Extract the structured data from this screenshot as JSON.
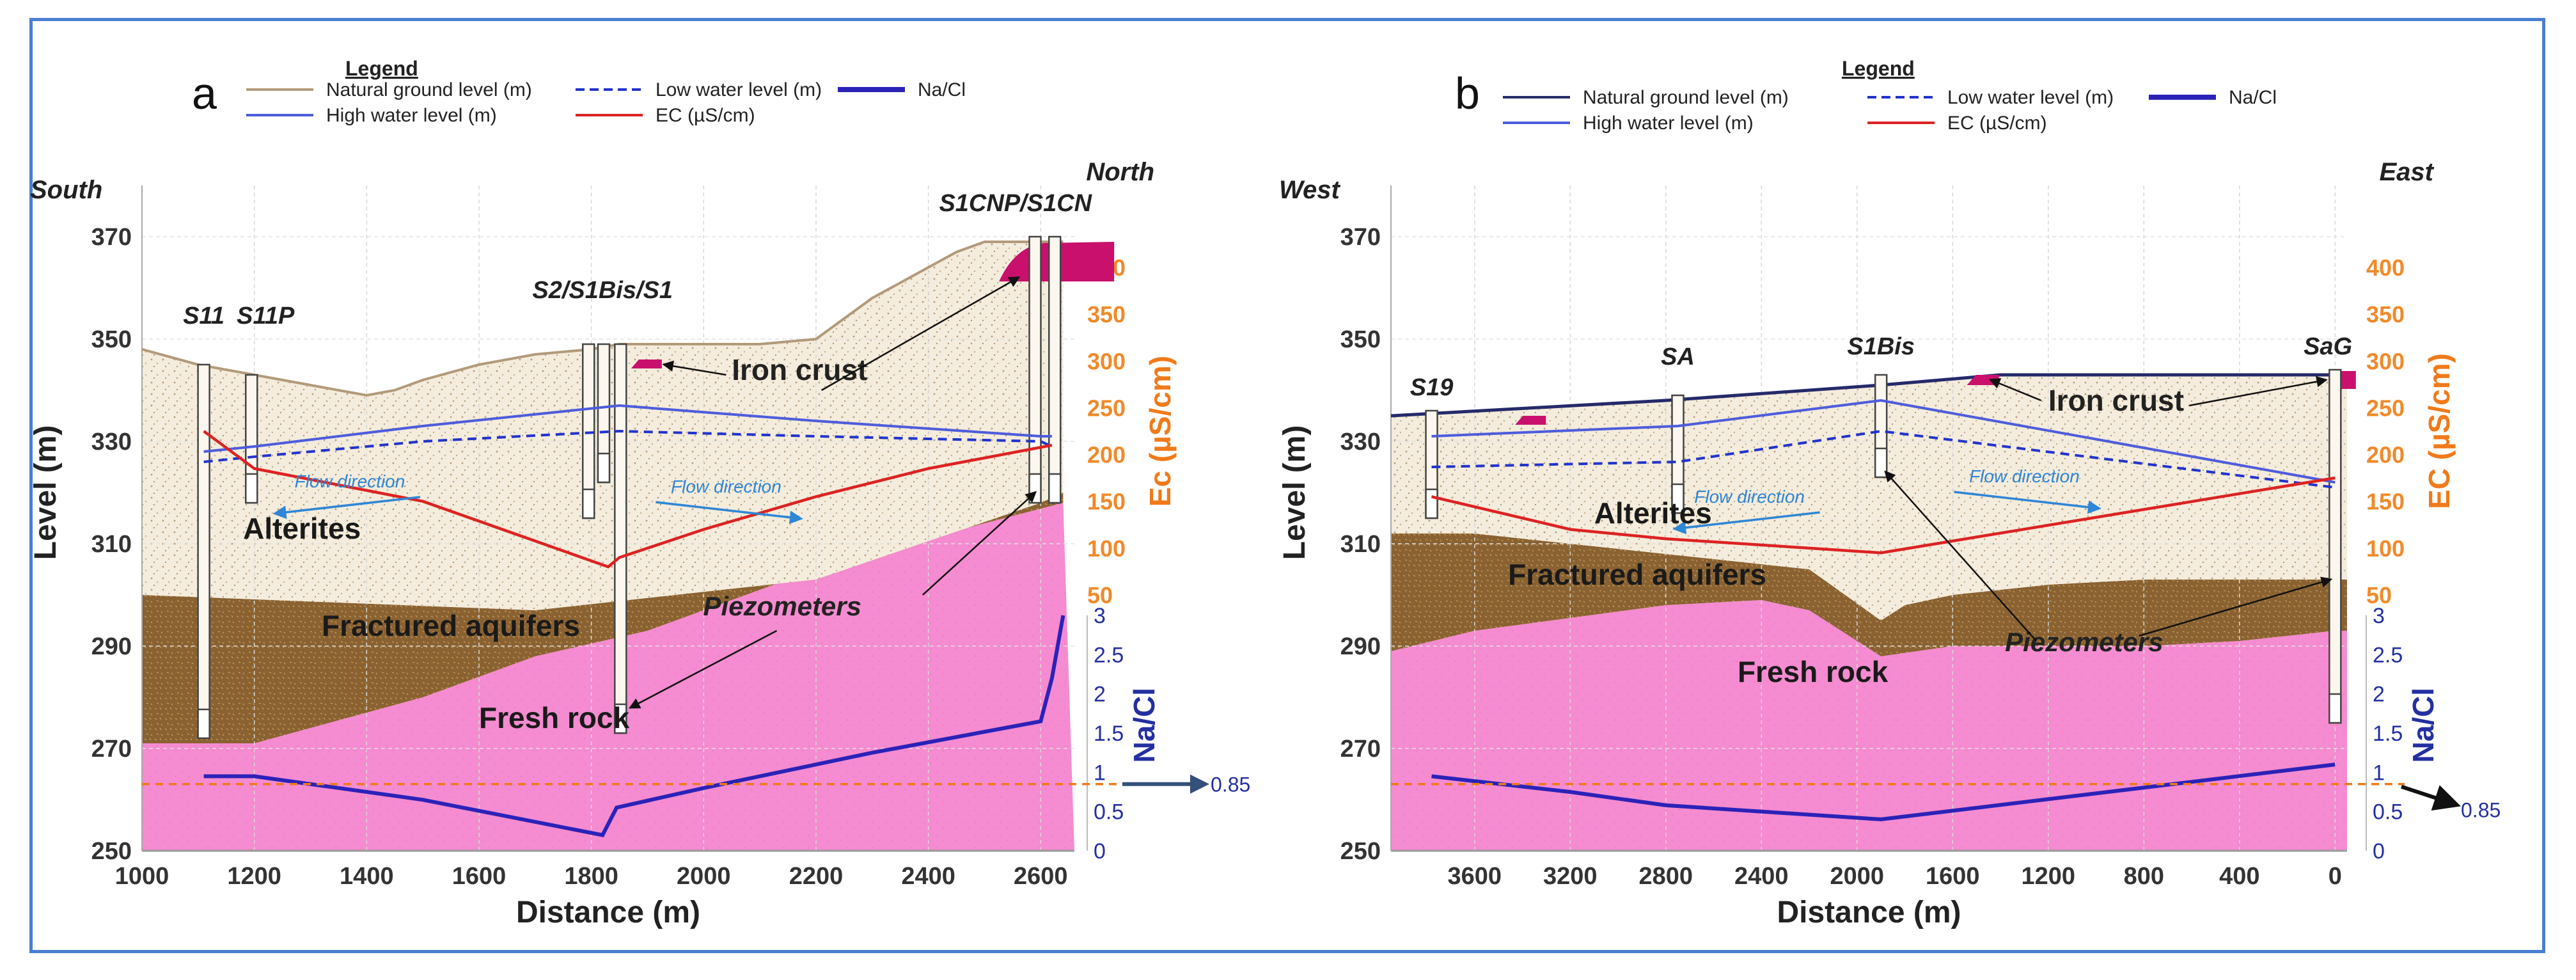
{
  "chart_data": [
    {
      "type": "cross-section",
      "panel_label": "a",
      "legend_title": "Legend",
      "legend": [
        {
          "key": "ground",
          "label": "Natural ground level (m)",
          "color": "#b29a7a",
          "style": "solid"
        },
        {
          "key": "low",
          "label": "Low water level (m)",
          "color": "#2233cc",
          "style": "dashed"
        },
        {
          "key": "nacl",
          "label": "Na/Cl",
          "color": "#2b22b8",
          "style": "solid"
        },
        {
          "key": "high",
          "label": "High water level (m)",
          "color": "#4d5cdc",
          "style": "solid"
        },
        {
          "key": "ec",
          "label": "EC (µS/cm)",
          "color": "#dd2222",
          "style": "solid"
        }
      ],
      "direction_left": "South",
      "direction_right": "North",
      "xlabel": "Distance (m)",
      "ylabel": "Level (m)",
      "ec_label": "Ec (µS/cm)",
      "nacl_label": "Na/Cl",
      "xlim": [
        1000,
        2660
      ],
      "ylim": [
        250,
        380
      ],
      "x_ticks": [
        1000,
        1200,
        1400,
        1600,
        1800,
        2000,
        2200,
        2400,
        2600
      ],
      "y_ticks": [
        250,
        270,
        290,
        310,
        330,
        350,
        370
      ],
      "ec_ticks": [
        50,
        100,
        150,
        200,
        250,
        300,
        350,
        400
      ],
      "nacl_ticks": [
        0,
        0.5,
        1,
        1.5,
        2,
        2.5,
        3
      ],
      "ground_level": {
        "x": [
          1000,
          1100,
          1200,
          1300,
          1400,
          1450,
          1500,
          1600,
          1700,
          1800,
          1850,
          1900,
          2000,
          2100,
          2200,
          2300,
          2400,
          2450,
          2500,
          2600,
          2640
        ],
        "y": [
          348,
          345,
          343,
          341,
          339,
          340,
          342,
          345,
          347,
          348,
          349,
          349,
          349,
          349,
          350,
          358,
          364,
          367,
          369,
          369,
          369
        ]
      },
      "high_water": {
        "x": [
          1110,
          1200,
          1500,
          1850,
          2200,
          2600,
          2620
        ],
        "y": [
          328,
          329,
          333,
          337,
          334,
          331,
          331
        ]
      },
      "low_water": {
        "x": [
          1110,
          1200,
          1500,
          1850,
          2200,
          2600,
          2620
        ],
        "y": [
          326,
          327,
          330,
          332,
          331,
          330,
          329
        ]
      },
      "ec": {
        "x": [
          1110,
          1200,
          1500,
          1830,
          1850,
          2000,
          2200,
          2400,
          2620
        ],
        "y": [
          225,
          185,
          150,
          80,
          90,
          120,
          155,
          185,
          210
        ]
      },
      "nacl": {
        "x": [
          1110,
          1200,
          1500,
          1820,
          1845,
          2000,
          2300,
          2600,
          2620,
          2640
        ],
        "y": [
          0.95,
          0.95,
          0.65,
          0.2,
          0.55,
          0.8,
          1.25,
          1.65,
          2.2,
          3.0
        ]
      },
      "nacl_threshold": 0.85,
      "nacl_threshold_label": "0.85",
      "layers": [
        {
          "name": "Alterites",
          "bottom_x": [
            1000,
            1700,
            2200,
            2600,
            2640
          ],
          "bottom_y": [
            300,
            297,
            303,
            318,
            320
          ]
        },
        {
          "name": "Fractured aquifers",
          "bottom_x": [
            1000,
            1200,
            1500,
            1700,
            1900,
            2200,
            2500,
            2640
          ],
          "bottom_y": [
            271,
            271,
            280,
            288,
            293,
            305,
            314,
            318
          ]
        },
        {
          "name": "Fresh rock"
        }
      ],
      "wells": [
        {
          "x": 1110,
          "top": 345,
          "bottom": 272
        },
        {
          "x": 1195,
          "top": 343,
          "bottom": 318
        },
        {
          "x": 1795,
          "top": 349,
          "bottom": 315
        },
        {
          "x": 1822,
          "top": 349,
          "bottom": 322
        },
        {
          "x": 1852,
          "top": 349,
          "bottom": 273
        },
        {
          "x": 2590,
          "top": 370,
          "bottom": 318
        },
        {
          "x": 2625,
          "top": 370,
          "bottom": 318
        }
      ],
      "well_labels": [
        {
          "x": 1110,
          "y": 353,
          "text": "S11"
        },
        {
          "x": 1220,
          "y": 353,
          "text": "S11P"
        },
        {
          "x": 1820,
          "y": 358,
          "text": "S2/S1Bis/S1"
        },
        {
          "x": 2555,
          "y": 375,
          "text": "S1CNP/S1CN"
        }
      ],
      "iron_crust": {
        "x": 2560,
        "y": 365,
        "label": "Iron crust",
        "label_x": 2050,
        "label_y": 342
      },
      "small_crust": {
        "x": 1905,
        "y": 345
      },
      "flow_labels": [
        {
          "x": 1370,
          "y": 321,
          "text": "Flow direction",
          "arrow_dir": "left"
        },
        {
          "x": 2040,
          "y": 320,
          "text": "Flow direction",
          "arrow_dir": "right"
        }
      ],
      "piezo_label": {
        "x": 2140,
        "y": 296,
        "text": "Piezometers"
      },
      "layer_labels": [
        {
          "x": 1180,
          "y": 311,
          "text": "Alterites"
        },
        {
          "x": 1320,
          "y": 292,
          "text": "Fractured aquifers"
        },
        {
          "x": 1600,
          "y": 274,
          "text": "Fresh rock"
        }
      ]
    },
    {
      "type": "cross-section",
      "panel_label": "b",
      "legend_title": "Legend",
      "legend": [
        {
          "key": "ground",
          "label": "Natural ground level (m)",
          "color": "#252a6a",
          "style": "solid"
        },
        {
          "key": "low",
          "label": "Low water level (m)",
          "color": "#2233cc",
          "style": "dashed"
        },
        {
          "key": "nacl",
          "label": "Na/Cl",
          "color": "#2b22b8",
          "style": "solid"
        },
        {
          "key": "high",
          "label": "High water level (m)",
          "color": "#4d5cdc",
          "style": "solid"
        },
        {
          "key": "ec",
          "label": "EC (µS/cm)",
          "color": "#dd2222",
          "style": "solid"
        }
      ],
      "direction_left": "West",
      "direction_right": "East",
      "xlabel": "Distance (m)",
      "ylabel": "Level (m)",
      "ec_label": "EC (µS/cm)",
      "nacl_label": "Na/Cl",
      "xlim": [
        3950,
        -50
      ],
      "ylim": [
        250,
        380
      ],
      "x_ticks": [
        3600,
        3200,
        2800,
        2400,
        2000,
        1600,
        1200,
        800,
        400,
        0
      ],
      "y_ticks": [
        250,
        270,
        290,
        310,
        330,
        350,
        370
      ],
      "ec_ticks": [
        50,
        100,
        150,
        200,
        250,
        300,
        350,
        400
      ],
      "nacl_ticks": [
        0,
        0.5,
        1,
        1.5,
        2,
        2.5,
        3
      ],
      "ground_level": {
        "x": [
          3950,
          2800,
          1900,
          1400,
          0,
          -50
        ],
        "y": [
          335,
          338,
          341,
          343,
          343,
          343
        ]
      },
      "high_water": {
        "x": [
          3780,
          2750,
          1900,
          0
        ],
        "y": [
          331,
          333,
          338,
          322
        ]
      },
      "low_water": {
        "x": [
          3780,
          2750,
          1900,
          0
        ],
        "y": [
          325,
          326,
          332,
          321
        ]
      },
      "ec": {
        "x": [
          3780,
          3200,
          2800,
          2200,
          1900,
          0
        ],
        "y": [
          155,
          120,
          110,
          100,
          95,
          175
        ]
      },
      "nacl": {
        "x": [
          3780,
          3200,
          2800,
          1900,
          0
        ],
        "y": [
          0.95,
          0.75,
          0.58,
          0.4,
          1.1
        ]
      },
      "nacl_threshold": 0.85,
      "nacl_threshold_label": "0.85",
      "layers": [
        {
          "name": "Alterites",
          "bottom_x": [
            3950,
            3600,
            2400,
            2200,
            1900,
            1800,
            1600,
            1200,
            800,
            400,
            0,
            -50
          ],
          "bottom_y": [
            312,
            312,
            306,
            305,
            295,
            298,
            300,
            302,
            303,
            303,
            303,
            303
          ]
        },
        {
          "name": "Fractured aquifers",
          "bottom_x": [
            3950,
            3600,
            2800,
            2400,
            2200,
            1900,
            1600,
            1200,
            800,
            400,
            0,
            -50
          ],
          "bottom_y": [
            289,
            293,
            298,
            299,
            297,
            288,
            290,
            290,
            290,
            291,
            293,
            293
          ]
        },
        {
          "name": "Fresh rock"
        }
      ],
      "wells": [
        {
          "x": 3780,
          "top": 336,
          "bottom": 315
        },
        {
          "x": 2750,
          "top": 339,
          "bottom": 316
        },
        {
          "x": 1900,
          "top": 343,
          "bottom": 323
        },
        {
          "x": 0,
          "top": 344,
          "bottom": 275
        }
      ],
      "well_labels": [
        {
          "x": 3780,
          "y": 339,
          "text": "S19"
        },
        {
          "x": 2750,
          "y": 345,
          "text": "SA"
        },
        {
          "x": 1900,
          "y": 347,
          "text": "S1Bis"
        },
        {
          "x": 30,
          "y": 347,
          "text": "SaG"
        }
      ],
      "iron_crust": {
        "x": 1460,
        "y": 342,
        "label": "Iron crust",
        "label_x": 1200,
        "label_y": 336
      },
      "small_crust": {
        "x": 3350,
        "y": 334
      },
      "small_crust2": {
        "x": -20,
        "y": 342
      },
      "flow_labels": [
        {
          "x": 2450,
          "y": 318,
          "text": "Flow direction",
          "arrow_dir": "left"
        },
        {
          "x": 1300,
          "y": 322,
          "text": "Flow direction",
          "arrow_dir": "right"
        }
      ],
      "piezo_label": {
        "x": 1050,
        "y": 289,
        "text": "Piezometers"
      },
      "layer_labels": [
        {
          "x": 3100,
          "y": 314,
          "text": "Alterites"
        },
        {
          "x": 3460,
          "y": 302,
          "text": "Fractured aquifers"
        },
        {
          "x": 2500,
          "y": 283,
          "text": "Fresh rock"
        }
      ]
    }
  ]
}
